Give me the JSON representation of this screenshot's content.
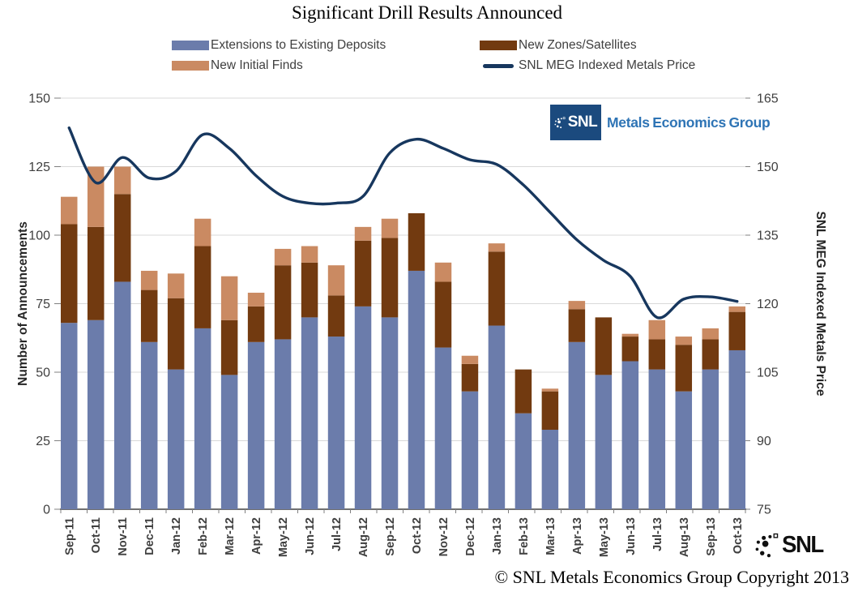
{
  "title": "Significant Drill Results Announced",
  "legend": [
    {
      "label": "Extensions to Existing Deposits",
      "color": "#6B7CAB",
      "marker": "rect"
    },
    {
      "label": "New Zones/Satellites",
      "color": "#723A10",
      "marker": "rect"
    },
    {
      "label": "New Initial Finds",
      "color": "#CA8A62",
      "marker": "rect"
    },
    {
      "label": "SNL MEG Indexed Metals Price",
      "color": "#17375E",
      "marker": "line"
    }
  ],
  "chart_data": {
    "type": "combo: stacked bar + line",
    "categories": [
      "Sep-11",
      "Oct-11",
      "Nov-11",
      "Dec-11",
      "Jan-12",
      "Feb-12",
      "Mar-12",
      "Apr-12",
      "May-12",
      "Jun-12",
      "Jul-12",
      "Aug-12",
      "Sep-12",
      "Oct-12",
      "Nov-12",
      "Dec-12",
      "Jan-13",
      "Feb-13",
      "Mar-13",
      "Apr-13",
      "May-13",
      "Jun-13",
      "Jul-13",
      "Aug-13",
      "Sep-13",
      "Oct-13"
    ],
    "series": [
      {
        "name": "Extensions to Existing Deposits",
        "type": "bar",
        "stack": "announcements",
        "axis": "left",
        "color": "#6B7CAB",
        "values": [
          68,
          69,
          83,
          61,
          51,
          66,
          49,
          61,
          62,
          70,
          63,
          74,
          70,
          87,
          59,
          43,
          67,
          35,
          29,
          61,
          49,
          54,
          51,
          43,
          51,
          58
        ]
      },
      {
        "name": "New Zones/Satellites",
        "type": "bar",
        "stack": "announcements",
        "axis": "left",
        "color": "#723A10",
        "values": [
          36,
          34,
          32,
          19,
          26,
          30,
          20,
          13,
          27,
          20,
          15,
          24,
          29,
          21,
          24,
          10,
          27,
          16,
          14,
          12,
          21,
          9,
          11,
          17,
          11,
          14
        ]
      },
      {
        "name": "New Initial Finds",
        "type": "bar",
        "stack": "announcements",
        "axis": "left",
        "color": "#CA8A62",
        "values": [
          10,
          22,
          10,
          7,
          9,
          10,
          16,
          5,
          6,
          6,
          11,
          5,
          7,
          0,
          7,
          3,
          3,
          0,
          1,
          3,
          0,
          1,
          7,
          3,
          4,
          2
        ]
      },
      {
        "name": "SNL MEG Indexed Metals Price",
        "type": "line",
        "axis": "right",
        "color": "#17375E",
        "values": [
          158.5,
          146.5,
          152,
          147.5,
          149,
          157,
          154,
          148,
          143.5,
          142,
          142,
          143.5,
          153,
          156,
          154,
          151.5,
          150.5,
          146,
          140,
          134,
          129.5,
          126,
          117,
          121,
          121.5,
          120.5
        ]
      }
    ],
    "left_axis": {
      "title": "Number of Announcements",
      "min": 0,
      "max": 150,
      "ticks": [
        0,
        25,
        50,
        75,
        100,
        125,
        150
      ]
    },
    "right_axis": {
      "title": "SNL MEG Indexed Metals Price",
      "min": 75,
      "max": 165,
      "ticks": [
        75,
        90,
        105,
        120,
        135,
        150,
        165
      ]
    },
    "grid": "horizontal only",
    "legend_position": "top"
  },
  "logos": {
    "meg": {
      "snl_text": "SNL",
      "group_text": "Metals Economics Group",
      "box_color": "#1B4A7E",
      "text_color": "#2E74B5"
    },
    "snl_footer": {
      "text": "SNL"
    }
  },
  "copyright": "© SNL Metals Economics Group Copyright 2013",
  "colors": {
    "gridline": "#D9D9D9",
    "axis_line": "#404040",
    "tick": "#808080",
    "axis_number": "#3F3F3F",
    "axis_title": "#262626",
    "x_label": "#3F3F3F"
  }
}
